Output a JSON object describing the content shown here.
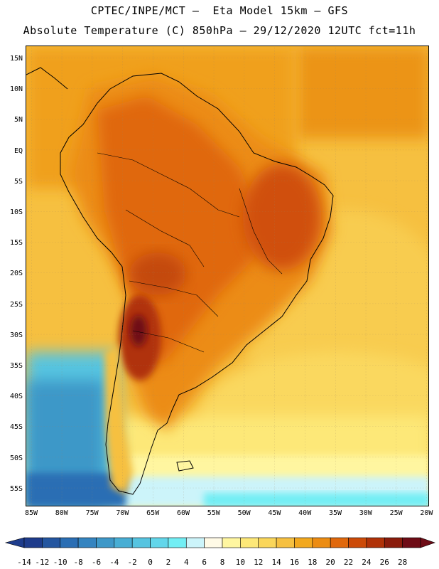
{
  "header": {
    "line1": "CPTEC/INPE/MCT –  Eta Model 15km – GFS",
    "line2": "Absolute Temperature (C) 850hPa – 29/12/2020 12UTC fct=11h"
  },
  "map": {
    "lat_labels": [
      "15N",
      "10N",
      "5N",
      "EQ",
      "5S",
      "10S",
      "15S",
      "20S",
      "25S",
      "30S",
      "35S",
      "40S",
      "45S",
      "50S",
      "55S"
    ],
    "lon_labels": [
      "85W",
      "80W",
      "75W",
      "70W",
      "65W",
      "60W",
      "55W",
      "50W",
      "45W",
      "40W",
      "35W",
      "30W",
      "25W",
      "20W"
    ]
  },
  "colorbar": {
    "labels": [
      "-14",
      "-12",
      "-10",
      "-8",
      "-6",
      "-4",
      "-2",
      "0",
      "2",
      "4",
      "6",
      "8",
      "10",
      "12",
      "14",
      "16",
      "18",
      "20",
      "22",
      "24",
      "26",
      "28"
    ],
    "colors": [
      "#1e3c8c",
      "#2456a0",
      "#2a6eb4",
      "#3484c0",
      "#3e98c8",
      "#48aed4",
      "#56c4e0",
      "#62d6ea",
      "#72eef4",
      "#ccf4fa",
      "#fffae6",
      "#fff6a0",
      "#fde878",
      "#fad65a",
      "#f6c040",
      "#f2a81e",
      "#ec8c12",
      "#e0680c",
      "#cc4a08",
      "#b03208",
      "#8a1c0c",
      "#6e0c16"
    ],
    "under_color": "#1e3c8c",
    "over_color": "#6e0c16"
  }
}
